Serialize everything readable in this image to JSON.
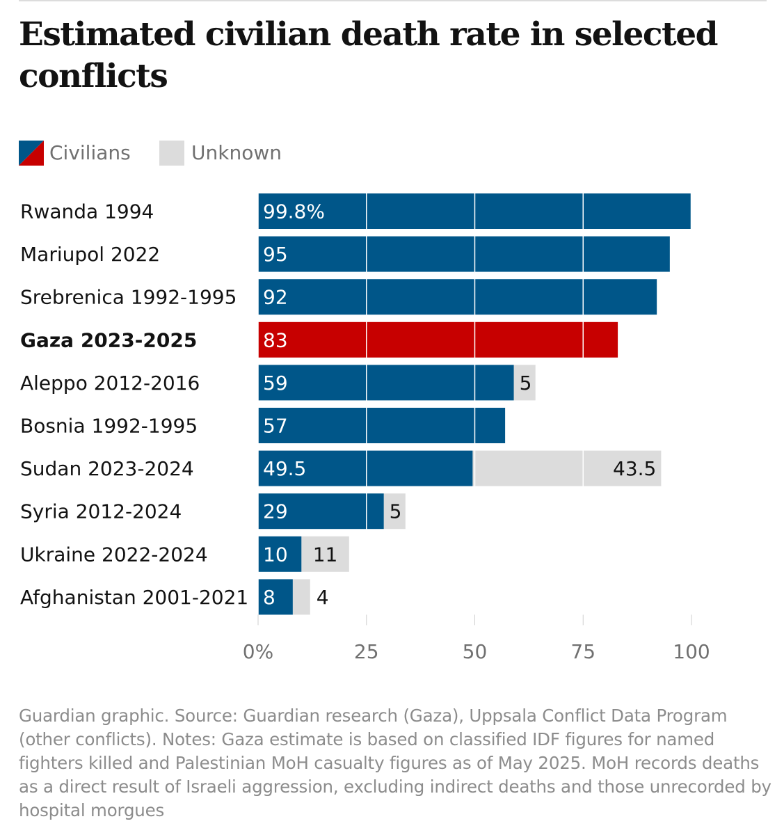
{
  "title": "Estimated civilian death rate in selected conflicts",
  "legend": {
    "civilians_label": "Civilians",
    "unknown_label": "Unknown"
  },
  "colors": {
    "civilians": "#005689",
    "highlight": "#c70000",
    "unknown": "#dcdcdc",
    "gridline": "#ffffff",
    "axis_text": "#707070"
  },
  "chart_data": {
    "type": "bar",
    "orientation": "horizontal",
    "stacked": true,
    "title": "Estimated civilian death rate in selected conflicts",
    "categories": [
      "Rwanda 1994",
      "Mariupol 2022",
      "Srebrenica 1992-1995",
      "Gaza 2023-2025",
      "Aleppo 2012-2016",
      "Bosnia 1992-1995",
      "Sudan 2023-2024",
      "Syria 2012-2024",
      "Ukraine 2022-2024",
      "Afghanistan 2001-2021"
    ],
    "highlight_category": "Gaza 2023-2025",
    "series": [
      {
        "name": "Civilians",
        "values": [
          99.8,
          95,
          92,
          83,
          59,
          57,
          49.5,
          29,
          10,
          8
        ]
      },
      {
        "name": "Unknown",
        "values": [
          0,
          0,
          0,
          0,
          5,
          0,
          43.5,
          5,
          11,
          4
        ]
      }
    ],
    "civilian_labels": [
      "99.8%",
      "95",
      "92",
      "83",
      "59",
      "57",
      "49.5",
      "29",
      "10",
      "8"
    ],
    "unknown_labels": [
      "",
      "",
      "",
      "",
      "5",
      "",
      "43.5",
      "5",
      "11",
      "4"
    ],
    "xlim": [
      0,
      100
    ],
    "xticks": [
      0,
      25,
      50,
      75,
      100
    ],
    "xtick_labels": [
      "0%",
      "25",
      "50",
      "75",
      "100"
    ],
    "xlabel": "",
    "ylabel": "",
    "grid": true,
    "legend_position": "top-left"
  },
  "footnote": "Guardian graphic. Source: Guardian research (Gaza), Uppsala Conflict Data Program (other conflicts). Notes: Gaza estimate is based on classified IDF figures for named fighters killed and Palestinian MoH casualty figures as of May 2025. MoH records deaths as a direct result of Israeli aggression, excluding indirect deaths and those unrecorded by hospital morgues"
}
